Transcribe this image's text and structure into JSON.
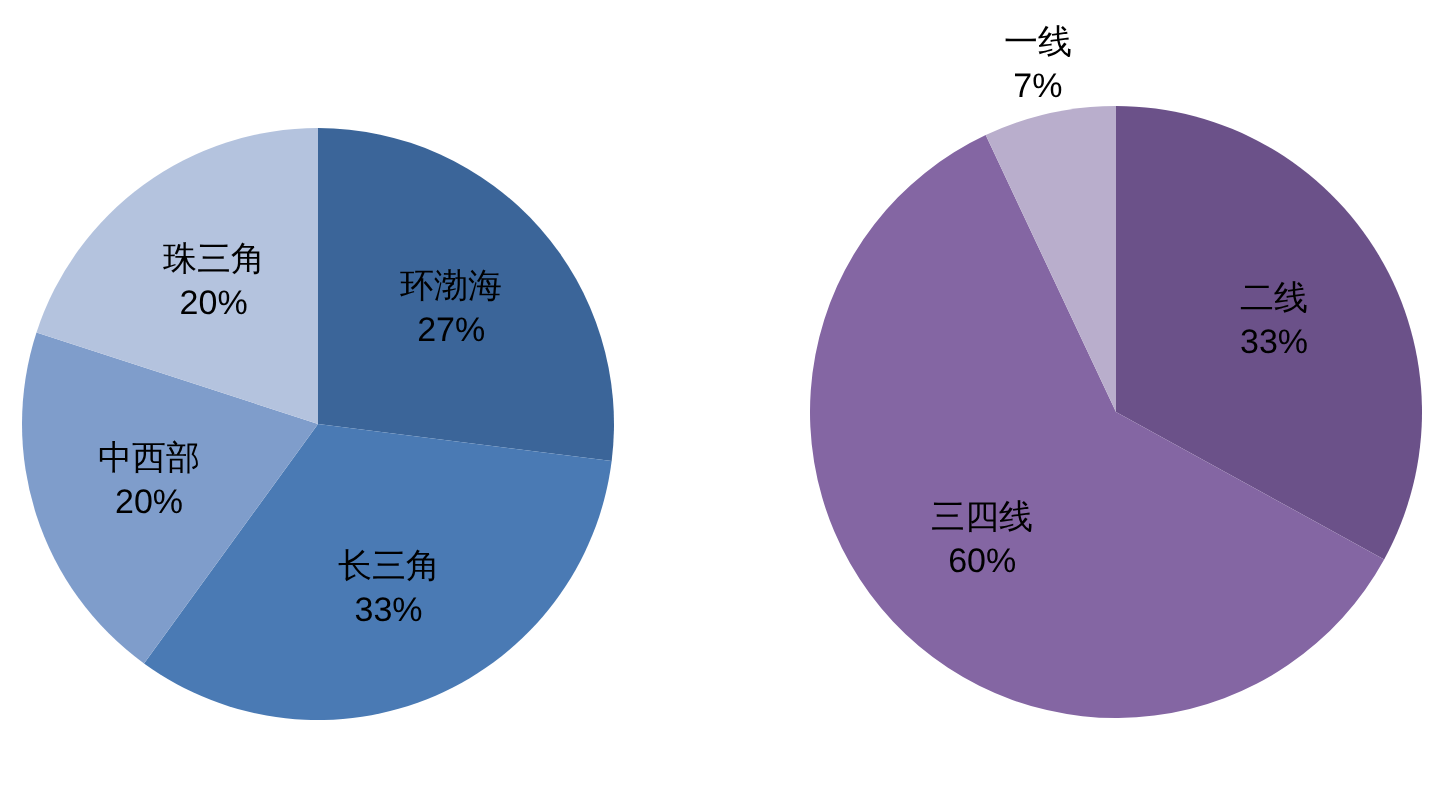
{
  "chart_data": [
    {
      "type": "pie",
      "categories": [
        "环渤海",
        "长三角",
        "中西部",
        "珠三角"
      ],
      "values": [
        27,
        33,
        20,
        20
      ],
      "value_labels": [
        "27%",
        "33%",
        "20%",
        "20%"
      ],
      "colors": [
        "#3b6599",
        "#4a7ab4",
        "#7f9dcb",
        "#b4c3de"
      ]
    },
    {
      "type": "pie",
      "categories": [
        "二线",
        "三四线",
        "一线"
      ],
      "values": [
        33,
        60,
        7
      ],
      "value_labels": [
        "33%",
        "60%",
        "7%"
      ],
      "colors": [
        "#6b5189",
        "#8466a3",
        "#b9aecc"
      ]
    }
  ]
}
